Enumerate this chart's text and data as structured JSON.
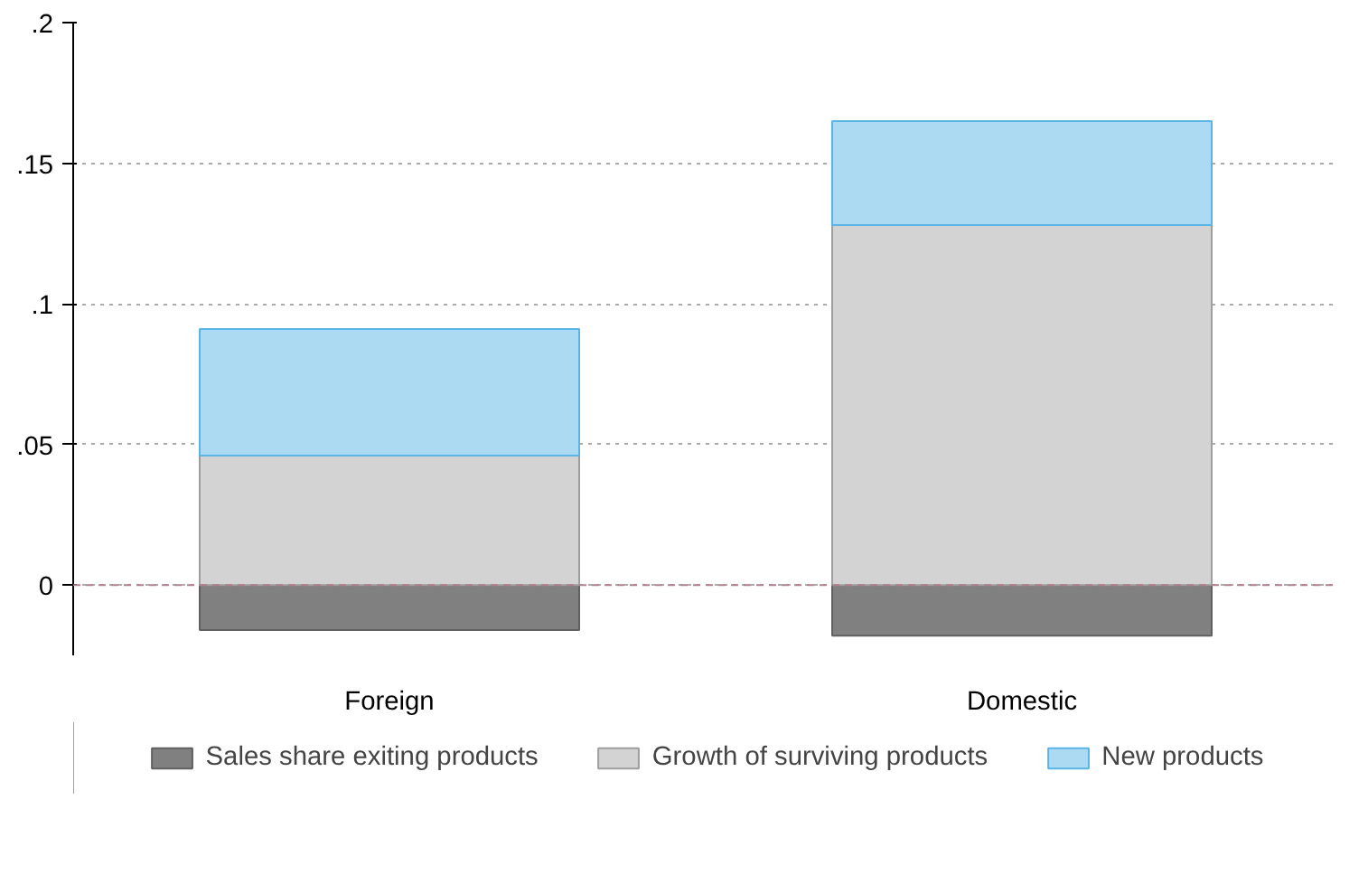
{
  "chart_data": {
    "type": "bar",
    "stacked": true,
    "categories": [
      "Foreign",
      "Domestic"
    ],
    "series": [
      {
        "name": "Sales share exiting products",
        "color": "#808080",
        "values": [
          -0.016,
          -0.018
        ]
      },
      {
        "name": "Growth of surviving products",
        "color": "#d3d3d3",
        "values": [
          0.046,
          0.128
        ]
      },
      {
        "name": "New products",
        "color": "#acdaf3",
        "values": [
          0.045,
          0.037
        ]
      }
    ],
    "ylim": [
      -0.025,
      0.2
    ],
    "yticks": [
      {
        "value": 0,
        "label": "0"
      },
      {
        "value": 0.05,
        "label": ".05"
      },
      {
        "value": 0.1,
        "label": ".1"
      },
      {
        "value": 0.15,
        "label": ".15"
      },
      {
        "value": 0.2,
        "label": ".2"
      }
    ],
    "grid": "y",
    "legend": "bottom",
    "ref_lines": [
      {
        "axis": "y",
        "value": 0,
        "color": "#b07f8a",
        "line_style": "dashed"
      }
    ]
  }
}
